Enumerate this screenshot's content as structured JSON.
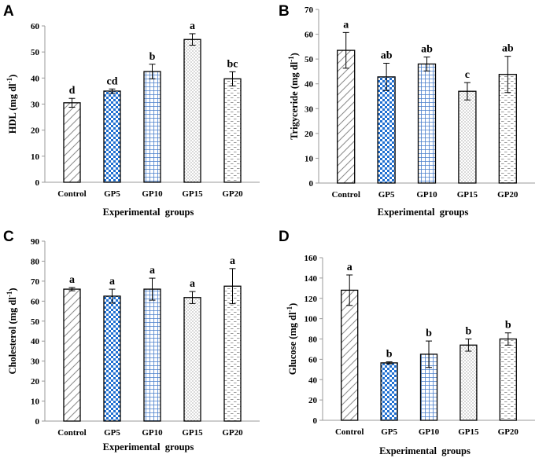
{
  "chart_data": [
    {
      "panel": "A",
      "type": "bar",
      "categories": [
        "Control",
        "GP5",
        "GP10",
        "GP15",
        "GP20"
      ],
      "values": [
        30.5,
        35,
        42.5,
        54.8,
        39.7
      ],
      "errors": [
        1.7,
        0.8,
        2.8,
        2.2,
        2.7
      ],
      "letters": [
        "d",
        "cd",
        "b",
        "a",
        "bc"
      ],
      "ylabel": "HDL (mg dl",
      "xlabel": "Experimental  groups",
      "ylim": [
        0,
        60
      ],
      "yticks": [
        "0",
        "10",
        "20",
        "30",
        "40",
        "50",
        "60"
      ]
    },
    {
      "panel": "B",
      "type": "bar",
      "categories": [
        "Control",
        "GP5",
        "GP10",
        "GP15",
        "GP20"
      ],
      "values": [
        53.5,
        42.8,
        48,
        37,
        43.8
      ],
      "errors": [
        7.2,
        5.5,
        2.8,
        3.5,
        7.3
      ],
      "letters": [
        "a",
        "ab",
        "ab",
        "c",
        "ab"
      ],
      "ylabel": "Trigyceride (mg dl",
      "xlabel": "Experimental  groups",
      "ylim": [
        0,
        70
      ],
      "yticks": [
        "0",
        "10",
        "20",
        "30",
        "40",
        "50",
        "60",
        "70"
      ]
    },
    {
      "panel": "C",
      "type": "bar",
      "categories": [
        "Control",
        "GP5",
        "GP10",
        "GP15",
        "GP20"
      ],
      "values": [
        66,
        62.5,
        66,
        61.8,
        67.5
      ],
      "errors": [
        0.8,
        3.5,
        5.5,
        3,
        8.8
      ],
      "letters": [
        "a",
        "a",
        "a",
        "a",
        "a"
      ],
      "ylabel": "Cholesterol (mg dl",
      "xlabel": "Experimental  groups",
      "ylim": [
        0,
        90
      ],
      "yticks": [
        "0",
        "10",
        "20",
        "30",
        "40",
        "50",
        "60",
        "70",
        "80",
        "90"
      ]
    },
    {
      "panel": "D",
      "type": "bar",
      "categories": [
        "Control",
        "GP5",
        "GP10",
        "GP15",
        "GP20"
      ],
      "values": [
        128,
        56.5,
        65,
        74,
        80
      ],
      "errors": [
        15,
        1,
        13,
        6,
        6
      ],
      "letters": [
        "a",
        "b",
        "b",
        "b",
        "b"
      ],
      "ylabel": "Glucose (mg dl",
      "xlabel": "Experimental  groups",
      "ylim": [
        0,
        160
      ],
      "yticks": [
        "0",
        "20",
        "40",
        "60",
        "80",
        "100",
        "120",
        "140",
        "160"
      ]
    }
  ],
  "units": {
    "superscript": "-1",
    "close": ")"
  },
  "colors": {
    "gp5_blue": "#1f6fd1",
    "gp10_blue": "#4a7fcc",
    "pattern_gray": "#8a8a8a",
    "axis": "#999999",
    "bar_border": "#000000"
  }
}
